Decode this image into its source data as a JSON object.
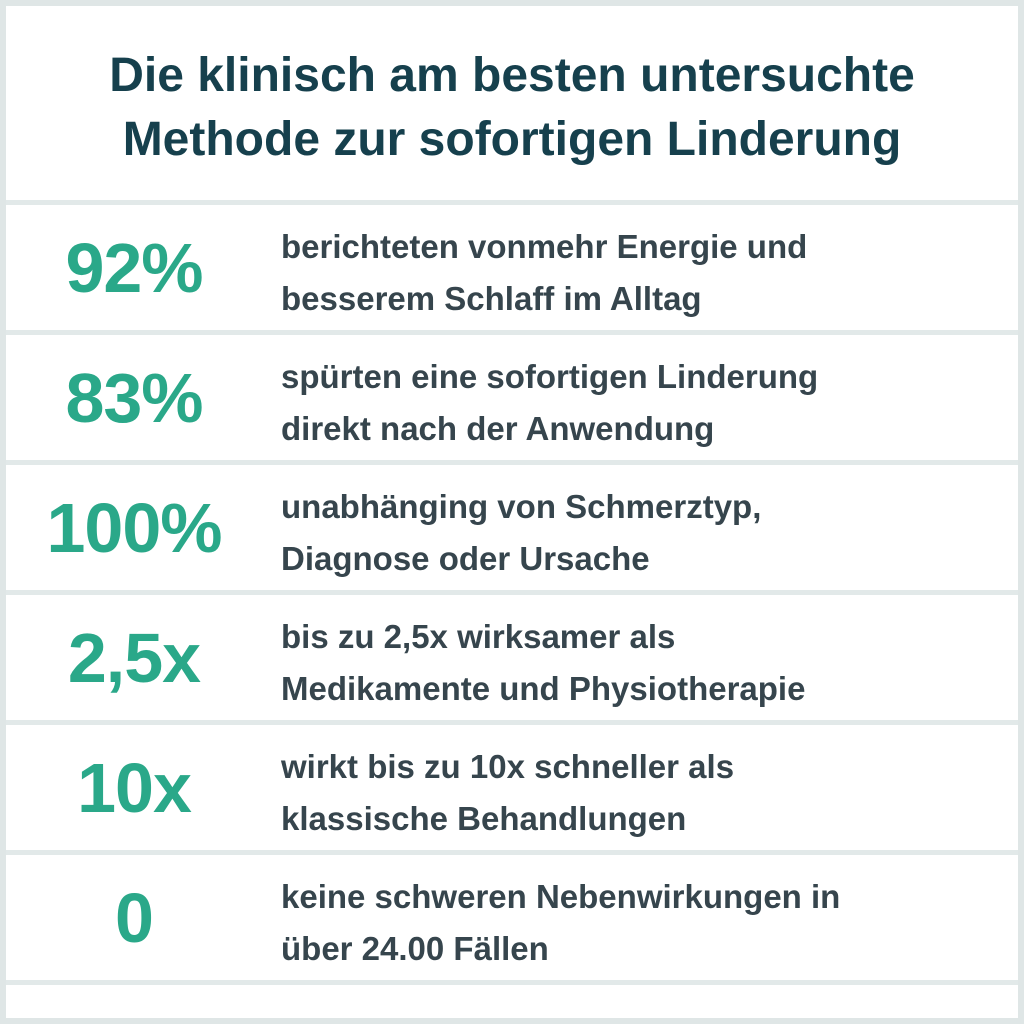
{
  "title": {
    "line1": "Die klinisch am besten untersuchte",
    "line2": "Methode zur sofortigen Linderung"
  },
  "stats": [
    {
      "value": "92%",
      "line1": "berichteten vonmehr Energie und",
      "line2": "besserem Schlaff im Alltag"
    },
    {
      "value": "83%",
      "line1": "spürten eine sofortigen Linderung",
      "line2": "direkt nach der Anwendung"
    },
    {
      "value": "100%",
      "line1": "unabhänging von Schmerztyp,",
      "line2": "Diagnose oder Ursache"
    },
    {
      "value": "2,5x",
      "line1": "bis zu 2,5x wirksamer als",
      "line2": "Medikamente und Physiotherapie"
    },
    {
      "value": "10x",
      "line1": "wirkt bis zu 10x schneller als",
      "line2": "klassische Behandlungen"
    },
    {
      "value": "0",
      "line1": "keine schweren Nebenwirkungen in",
      "line2": "über 24.00 Fällen"
    }
  ],
  "colors": {
    "title": "#16404d",
    "stat": "#2aa889",
    "text": "#36454d",
    "divider": "#e2e9e9",
    "frame": "#dfe6e6"
  }
}
